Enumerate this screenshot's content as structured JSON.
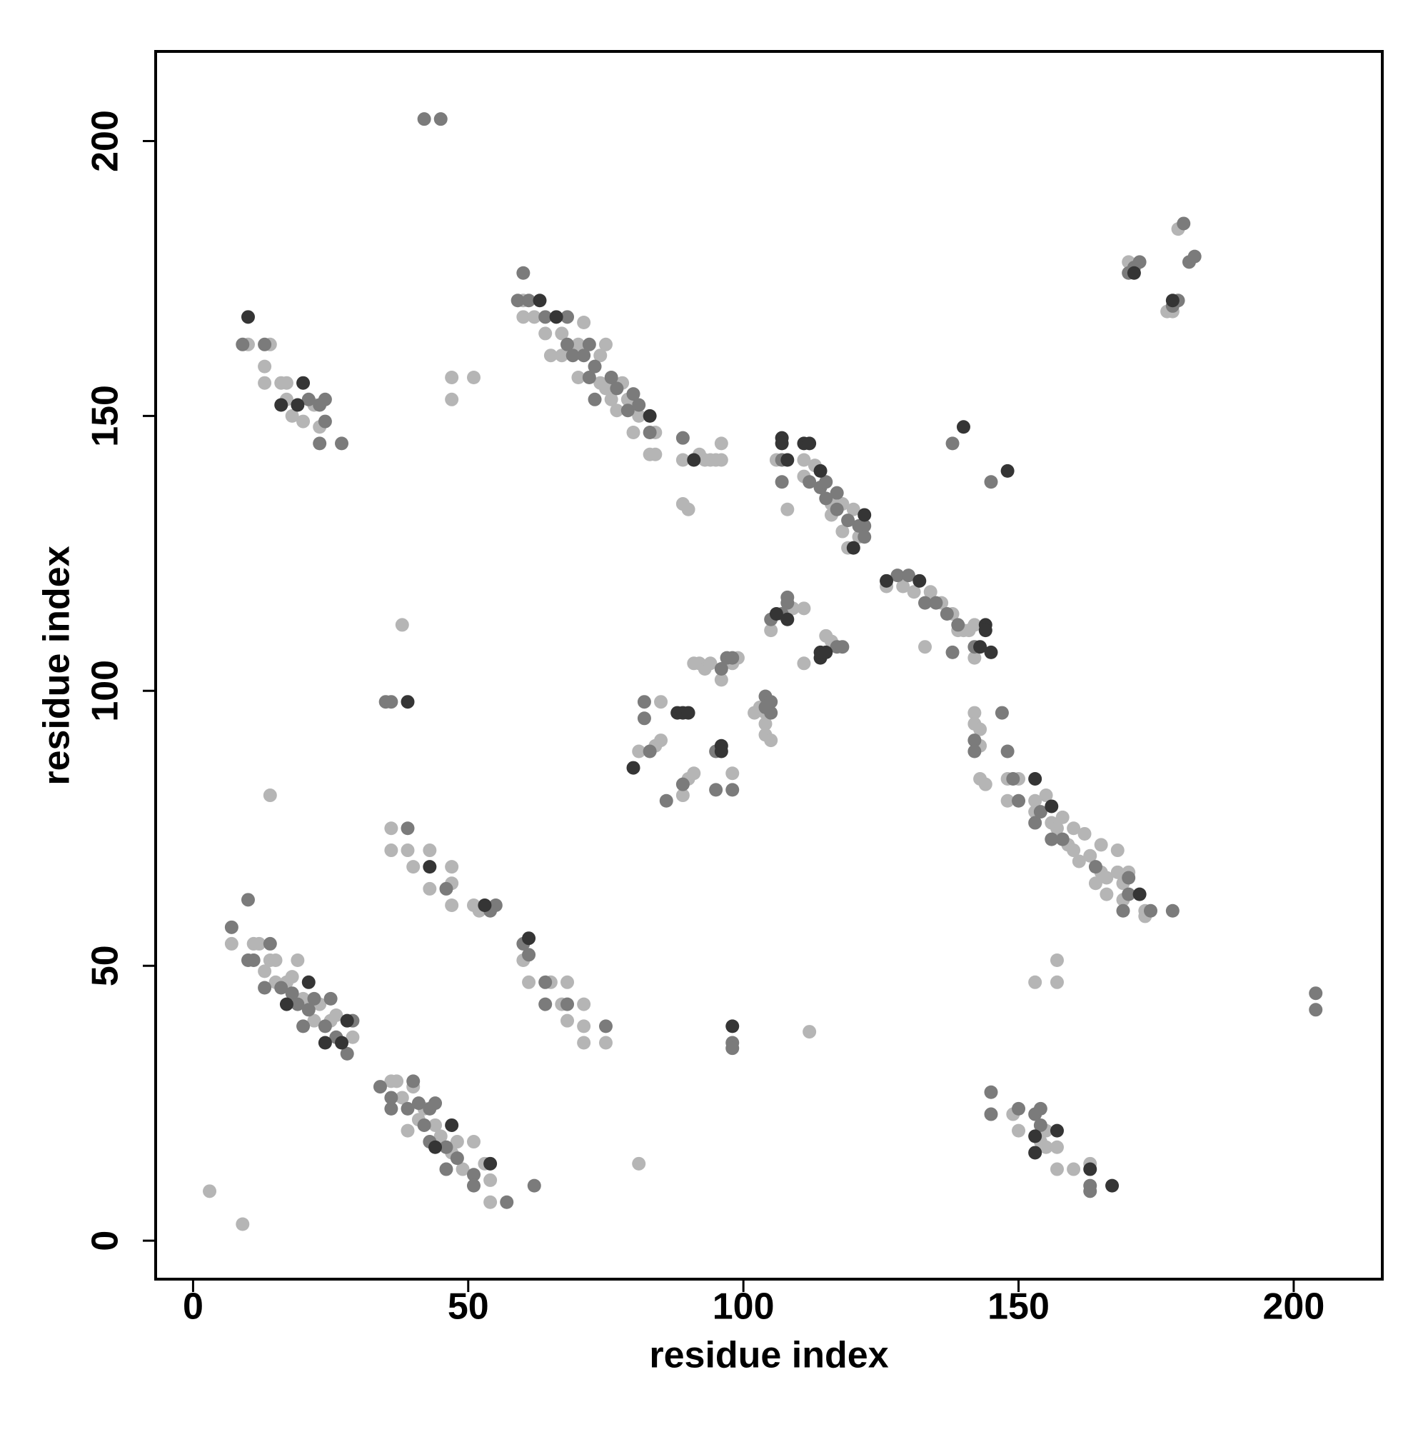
{
  "chart_data": {
    "type": "scatter",
    "x_label": "residue index",
    "y_label": "residue index",
    "xlim": [
      -6.8,
      216.1
    ],
    "ylim": [
      -7,
      216.3
    ],
    "xticks": [
      0,
      50,
      100,
      150,
      200
    ],
    "yticks": [
      0,
      50,
      100,
      150,
      200
    ],
    "grid": false,
    "series": [
      {
        "color": "#b5b5b5",
        "x": [
          7,
          11,
          12,
          13,
          14,
          15,
          15,
          17,
          18,
          19,
          20,
          22,
          23,
          25,
          26,
          29,
          36,
          37,
          38,
          39,
          40,
          41,
          42,
          44,
          45,
          47,
          48,
          49,
          51,
          53,
          54,
          54,
          36,
          36,
          39,
          40,
          43,
          43,
          47,
          47,
          47,
          51,
          52,
          60,
          61,
          65,
          67,
          68,
          68,
          71,
          71,
          71,
          75,
          10,
          14,
          13,
          13,
          16,
          17,
          17,
          18,
          20,
          22,
          23,
          3,
          9,
          14,
          38,
          47,
          47,
          51,
          81,
          112,
          153,
          157,
          157,
          60,
          60,
          62,
          64,
          65,
          67,
          67,
          70,
          70,
          71,
          74,
          74,
          75,
          75,
          76,
          77,
          78,
          79,
          80,
          81,
          83,
          84,
          84,
          89,
          89,
          90,
          92,
          93,
          94,
          95,
          96,
          96,
          106,
          108,
          111,
          111,
          113,
          116,
          116,
          118,
          119,
          120,
          121,
          118,
          126,
          129,
          131,
          134,
          136,
          138,
          139,
          140,
          141,
          142,
          142,
          133,
          81,
          84,
          85,
          85,
          89,
          90,
          91,
          91,
          92,
          93,
          94,
          96,
          98,
          98,
          99,
          102,
          103,
          104,
          104,
          104,
          105,
          105,
          109,
          111,
          111,
          115,
          116,
          142,
          142,
          143,
          143,
          143,
          144,
          148,
          148,
          150,
          153,
          153,
          155,
          156,
          157,
          158,
          159,
          160,
          160,
          161,
          162,
          163,
          164,
          165,
          165,
          166,
          166,
          168,
          168,
          169,
          169,
          170,
          173,
          173,
          149,
          150,
          154,
          155,
          155,
          157,
          157,
          160,
          163,
          170,
          177,
          178,
          179
        ],
        "values": [
          54,
          54,
          54,
          49,
          51,
          51,
          47,
          47,
          48,
          51,
          44,
          40,
          43,
          40,
          41,
          37,
          29,
          29,
          26,
          20,
          28,
          22,
          24,
          21,
          19,
          16,
          18,
          13,
          18,
          14,
          11,
          7,
          75,
          71,
          71,
          68,
          71,
          64,
          68,
          65,
          61,
          61,
          60,
          51,
          47,
          47,
          43,
          47,
          40,
          43,
          39,
          36,
          36,
          163,
          163,
          159,
          156,
          156,
          153,
          156,
          150,
          149,
          152,
          148,
          9,
          3,
          81,
          112,
          157,
          153,
          157,
          14,
          38,
          47,
          51,
          47,
          171,
          168,
          168,
          165,
          161,
          165,
          161,
          157,
          163,
          167,
          161,
          156,
          163,
          155,
          153,
          151,
          156,
          153,
          147,
          150,
          143,
          147,
          143,
          142,
          134,
          133,
          143,
          142,
          142,
          142,
          145,
          142,
          142,
          133,
          142,
          139,
          141,
          134,
          132,
          134,
          126,
          133,
          128,
          129,
          119,
          119,
          118,
          118,
          116,
          114,
          111,
          111,
          111,
          112,
          106,
          108,
          89,
          90,
          91,
          98,
          81,
          84,
          85,
          105,
          105,
          104,
          105,
          102,
          105,
          85,
          106,
          96,
          97,
          96,
          94,
          92,
          91,
          111,
          115,
          115,
          105,
          110,
          109,
          96,
          94,
          93,
          90,
          84,
          83,
          84,
          80,
          84,
          80,
          78,
          81,
          76,
          75,
          77,
          72,
          75,
          71,
          69,
          74,
          70,
          65,
          72,
          67,
          63,
          66,
          71,
          67,
          65,
          62,
          67,
          60,
          59,
          23,
          20,
          18,
          20,
          17,
          17,
          13,
          13,
          14,
          178,
          169,
          169,
          184
        ]
      },
      {
        "color": "#7b7b7b",
        "x": [
          7,
          10,
          10,
          11,
          13,
          14,
          16,
          18,
          19,
          20,
          21,
          22,
          24,
          25,
          26,
          28,
          29,
          34,
          36,
          36,
          39,
          40,
          41,
          42,
          43,
          43,
          44,
          46,
          46,
          48,
          51,
          51,
          57,
          62,
          39,
          46,
          54,
          55,
          60,
          61,
          64,
          64,
          68,
          75,
          9,
          13,
          21,
          23,
          23,
          24,
          24,
          27,
          35,
          36,
          42,
          45,
          98,
          98,
          204,
          204,
          59,
          60,
          61,
          64,
          68,
          68,
          69,
          71,
          72,
          72,
          73,
          73,
          76,
          77,
          79,
          80,
          81,
          83,
          89,
          107,
          107,
          112,
          114,
          115,
          115,
          117,
          117,
          119,
          121,
          122,
          122,
          128,
          130,
          133,
          135,
          137,
          139,
          142,
          138,
          138,
          145,
          82,
          82,
          83,
          86,
          89,
          95,
          95,
          96,
          97,
          98,
          98,
          104,
          105,
          105,
          105,
          107,
          108,
          108,
          117,
          118,
          104,
          142,
          142,
          147,
          148,
          149,
          150,
          153,
          154,
          156,
          158,
          164,
          169,
          170,
          170,
          174,
          178,
          145,
          145,
          150,
          153,
          154,
          154,
          163,
          163,
          170,
          171,
          172,
          178,
          179,
          180,
          181,
          182
        ],
        "values": [
          57,
          62,
          51,
          51,
          46,
          54,
          46,
          45,
          43,
          39,
          42,
          44,
          39,
          44,
          37,
          34,
          40,
          28,
          26,
          24,
          24,
          29,
          25,
          21,
          24,
          18,
          25,
          17,
          13,
          15,
          12,
          10,
          7,
          10,
          75,
          64,
          60,
          61,
          54,
          52,
          47,
          43,
          43,
          39,
          163,
          163,
          153,
          152,
          145,
          153,
          149,
          145,
          98,
          98,
          204,
          204,
          36,
          35,
          45,
          42,
          171,
          176,
          171,
          168,
          168,
          163,
          161,
          161,
          157,
          163,
          159,
          153,
          157,
          155,
          151,
          154,
          152,
          147,
          146,
          142,
          138,
          138,
          137,
          138,
          135,
          136,
          133,
          131,
          130,
          130,
          128,
          121,
          121,
          116,
          116,
          114,
          112,
          108,
          107,
          145,
          138,
          98,
          95,
          89,
          80,
          83,
          89,
          82,
          104,
          106,
          106,
          82,
          99,
          98,
          96,
          113,
          114,
          117,
          116,
          108,
          108,
          97,
          91,
          89,
          96,
          89,
          84,
          80,
          76,
          78,
          73,
          73,
          68,
          60,
          66,
          63,
          60,
          60,
          27,
          23,
          24,
          23,
          24,
          21,
          10,
          9,
          176,
          177,
          178,
          170,
          171,
          185,
          178,
          179
        ]
      },
      {
        "color": "#353535",
        "x": [
          17,
          21,
          24,
          27,
          28,
          47,
          44,
          54,
          43,
          53,
          61,
          10,
          16,
          19,
          20,
          39,
          98,
          63,
          66,
          83,
          91,
          107,
          107,
          108,
          111,
          112,
          114,
          120,
          122,
          126,
          132,
          144,
          144,
          145,
          143,
          140,
          148,
          80,
          88,
          89,
          90,
          96,
          96,
          106,
          108,
          114,
          114,
          115,
          153,
          156,
          172,
          153,
          153,
          157,
          163,
          167,
          171,
          178
        ],
        "values": [
          43,
          47,
          36,
          36,
          40,
          21,
          17,
          14,
          68,
          61,
          55,
          168,
          152,
          152,
          156,
          98,
          39,
          171,
          168,
          150,
          142,
          146,
          145,
          142,
          145,
          145,
          140,
          126,
          132,
          120,
          120,
          112,
          111,
          107,
          108,
          148,
          140,
          86,
          96,
          96,
          96,
          90,
          89,
          114,
          113,
          106,
          107,
          107,
          84,
          79,
          63,
          19,
          16,
          20,
          13,
          10,
          176,
          171
        ]
      }
    ]
  }
}
